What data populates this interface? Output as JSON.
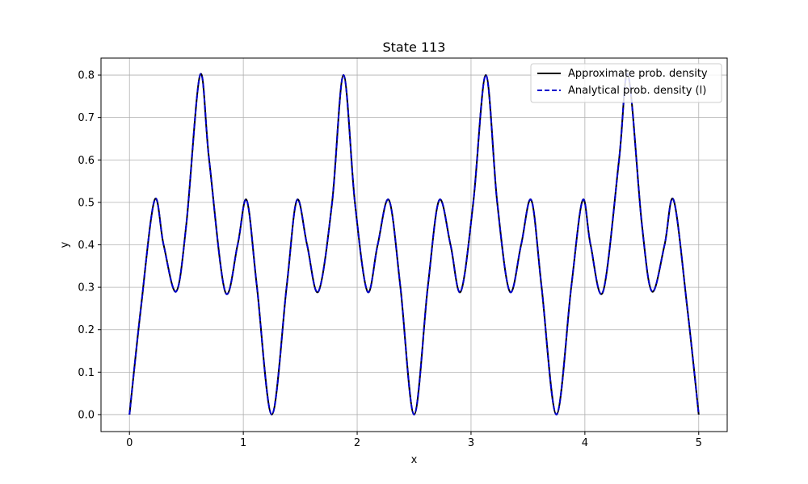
{
  "chart_data": {
    "type": "line",
    "title": "State 113",
    "xlabel": "x",
    "ylabel": "y",
    "xlim": [
      -0.25,
      5.25
    ],
    "ylim": [
      -0.04,
      0.84
    ],
    "xticks": [
      0,
      1,
      2,
      3,
      4,
      5
    ],
    "yticks": [
      0.0,
      0.1,
      0.2,
      0.3,
      0.4,
      0.5,
      0.6,
      0.7,
      0.8
    ],
    "xtick_labels": [
      "0",
      "1",
      "2",
      "3",
      "4",
      "5"
    ],
    "ytick_labels": [
      "0.0",
      "0.1",
      "0.2",
      "0.3",
      "0.4",
      "0.5",
      "0.6",
      "0.7",
      "0.8"
    ],
    "grid": true,
    "legend_position": "top-right",
    "series": [
      {
        "name": "Approximate prob. density",
        "color": "#000000",
        "style": "solid",
        "x": [
          0.0,
          0.1,
          0.22,
          0.3,
          0.41,
          0.5,
          0.62,
          0.7,
          0.84,
          0.95,
          1.03,
          1.12,
          1.25,
          1.38,
          1.47,
          1.56,
          1.66,
          1.78,
          1.88,
          1.98,
          2.09,
          2.18,
          2.28,
          2.38,
          2.5,
          2.62,
          2.72,
          2.82,
          2.91,
          3.02,
          3.13,
          3.23,
          3.34,
          3.44,
          3.53,
          3.62,
          3.75,
          3.88,
          3.98,
          4.05,
          4.16,
          4.3,
          4.38,
          4.5,
          4.59,
          4.7,
          4.78,
          4.9,
          5.0
        ],
        "y": [
          0.0,
          0.25,
          0.505,
          0.4,
          0.29,
          0.45,
          0.8,
          0.6,
          0.29,
          0.4,
          0.505,
          0.3,
          0.0,
          0.3,
          0.505,
          0.4,
          0.29,
          0.5,
          0.8,
          0.5,
          0.29,
          0.4,
          0.505,
          0.3,
          0.0,
          0.3,
          0.505,
          0.4,
          0.29,
          0.5,
          0.8,
          0.5,
          0.29,
          0.4,
          0.505,
          0.3,
          0.0,
          0.3,
          0.505,
          0.4,
          0.29,
          0.6,
          0.8,
          0.45,
          0.29,
          0.4,
          0.505,
          0.25,
          0.0
        ]
      },
      {
        "name": "Analytical prob. density (l)",
        "color": "#0000cc",
        "style": "dashed",
        "x": [
          0.0,
          0.1,
          0.22,
          0.3,
          0.41,
          0.5,
          0.62,
          0.7,
          0.84,
          0.95,
          1.03,
          1.12,
          1.25,
          1.38,
          1.47,
          1.56,
          1.66,
          1.78,
          1.88,
          1.98,
          2.09,
          2.18,
          2.28,
          2.38,
          2.5,
          2.62,
          2.72,
          2.82,
          2.91,
          3.02,
          3.13,
          3.23,
          3.34,
          3.44,
          3.53,
          3.62,
          3.75,
          3.88,
          3.98,
          4.05,
          4.16,
          4.3,
          4.38,
          4.5,
          4.59,
          4.7,
          4.78,
          4.9,
          5.0
        ],
        "y": [
          0.0,
          0.25,
          0.505,
          0.4,
          0.29,
          0.45,
          0.8,
          0.6,
          0.29,
          0.4,
          0.505,
          0.3,
          0.0,
          0.3,
          0.505,
          0.4,
          0.29,
          0.5,
          0.8,
          0.5,
          0.29,
          0.4,
          0.505,
          0.3,
          0.0,
          0.3,
          0.505,
          0.4,
          0.29,
          0.5,
          0.8,
          0.5,
          0.29,
          0.4,
          0.505,
          0.3,
          0.0,
          0.3,
          0.505,
          0.4,
          0.29,
          0.6,
          0.8,
          0.45,
          0.29,
          0.4,
          0.505,
          0.25,
          0.0
        ]
      }
    ]
  }
}
